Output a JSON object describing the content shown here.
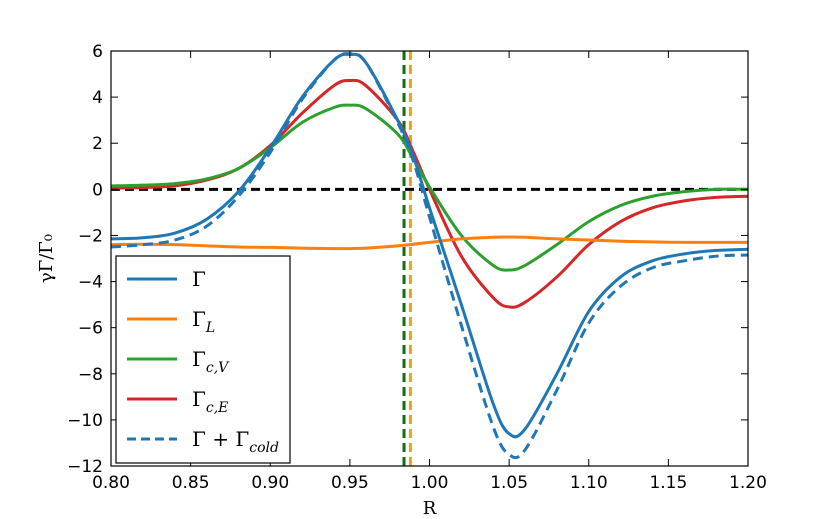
{
  "chart_data": {
    "type": "line",
    "xlabel": "R",
    "ylabel": "γΓ/Γ₀",
    "xlim": [
      0.8,
      1.2
    ],
    "ylim": [
      -12,
      6
    ],
    "x_ticks": [
      "0.80",
      "0.85",
      "0.90",
      "0.95",
      "1.00",
      "1.05",
      "1.10",
      "1.15",
      "1.20"
    ],
    "y_ticks": [
      "−12",
      "−10",
      "−8",
      "−6",
      "−4",
      "−2",
      "0",
      "2",
      "4",
      "6"
    ],
    "x_tick_values": [
      0.8,
      0.85,
      0.9,
      0.95,
      1.0,
      1.05,
      1.1,
      1.15,
      1.2
    ],
    "y_tick_values": [
      -12,
      -10,
      -8,
      -6,
      -4,
      -2,
      0,
      2,
      4,
      6
    ],
    "reference_lines": [
      {
        "orientation": "horizontal",
        "value": 0,
        "color": "#000000",
        "style": "dashed"
      },
      {
        "orientation": "vertical",
        "value": 0.984,
        "color": "#107010",
        "style": "dashed"
      },
      {
        "orientation": "vertical",
        "value": 0.988,
        "color": "#e8a317",
        "style": "dashed"
      }
    ],
    "legend_position": "lower-left",
    "x": [
      0.8,
      0.82,
      0.84,
      0.86,
      0.88,
      0.9,
      0.92,
      0.94,
      0.95,
      0.96,
      0.98,
      0.99,
      1.0,
      1.02,
      1.04,
      1.05,
      1.06,
      1.08,
      1.1,
      1.12,
      1.14,
      1.16,
      1.18,
      1.2
    ],
    "series": [
      {
        "name": "Γ",
        "legend_main": "Γ",
        "legend_sub": "",
        "color": "#1f77b4",
        "style": "solid",
        "values": [
          -2.15,
          -2.1,
          -1.9,
          -1.3,
          -0.1,
          1.8,
          4.0,
          5.6,
          5.85,
          5.5,
          3.0,
          1.4,
          -0.8,
          -5.0,
          -9.3,
          -10.6,
          -10.4,
          -8.0,
          -5.3,
          -3.8,
          -3.1,
          -2.8,
          -2.65,
          -2.6
        ]
      },
      {
        "name": "Γ_L",
        "legend_main": "Γ",
        "legend_sub": "L",
        "color": "#ff7f0e",
        "style": "solid",
        "values": [
          -2.4,
          -2.38,
          -2.4,
          -2.45,
          -2.5,
          -2.52,
          -2.55,
          -2.57,
          -2.57,
          -2.55,
          -2.45,
          -2.38,
          -2.3,
          -2.15,
          -2.08,
          -2.07,
          -2.08,
          -2.15,
          -2.2,
          -2.25,
          -2.28,
          -2.3,
          -2.3,
          -2.3
        ]
      },
      {
        "name": "Γ_c,V",
        "legend_main": "Γ",
        "legend_sub": "c,V",
        "color": "#2ca02c",
        "style": "solid",
        "values": [
          0.15,
          0.18,
          0.25,
          0.45,
          0.9,
          1.8,
          2.9,
          3.55,
          3.65,
          3.5,
          2.4,
          1.3,
          0.1,
          -2.0,
          -3.3,
          -3.5,
          -3.3,
          -2.4,
          -1.4,
          -0.7,
          -0.3,
          -0.1,
          0.0,
          0.0
        ]
      },
      {
        "name": "Γ_c,E",
        "legend_main": "Γ",
        "legend_sub": "c,E",
        "color": "#d62728",
        "style": "solid",
        "values": [
          0.05,
          0.08,
          0.15,
          0.4,
          0.9,
          1.9,
          3.3,
          4.5,
          4.72,
          4.5,
          3.0,
          1.6,
          0.0,
          -2.9,
          -4.7,
          -5.1,
          -4.9,
          -3.8,
          -2.4,
          -1.4,
          -0.8,
          -0.5,
          -0.35,
          -0.3
        ]
      },
      {
        "name": "Γ+Γ_cold",
        "legend_main": "Γ + Γ",
        "legend_sub": "cold",
        "color": "#1f77b4",
        "style": "dashed",
        "values": [
          -2.5,
          -2.4,
          -2.2,
          -1.6,
          -0.3,
          1.6,
          3.9,
          5.6,
          5.88,
          5.5,
          2.9,
          1.2,
          -1.2,
          -5.9,
          -10.3,
          -11.5,
          -11.3,
          -8.7,
          -5.8,
          -4.2,
          -3.4,
          -3.1,
          -2.9,
          -2.85
        ]
      }
    ]
  }
}
